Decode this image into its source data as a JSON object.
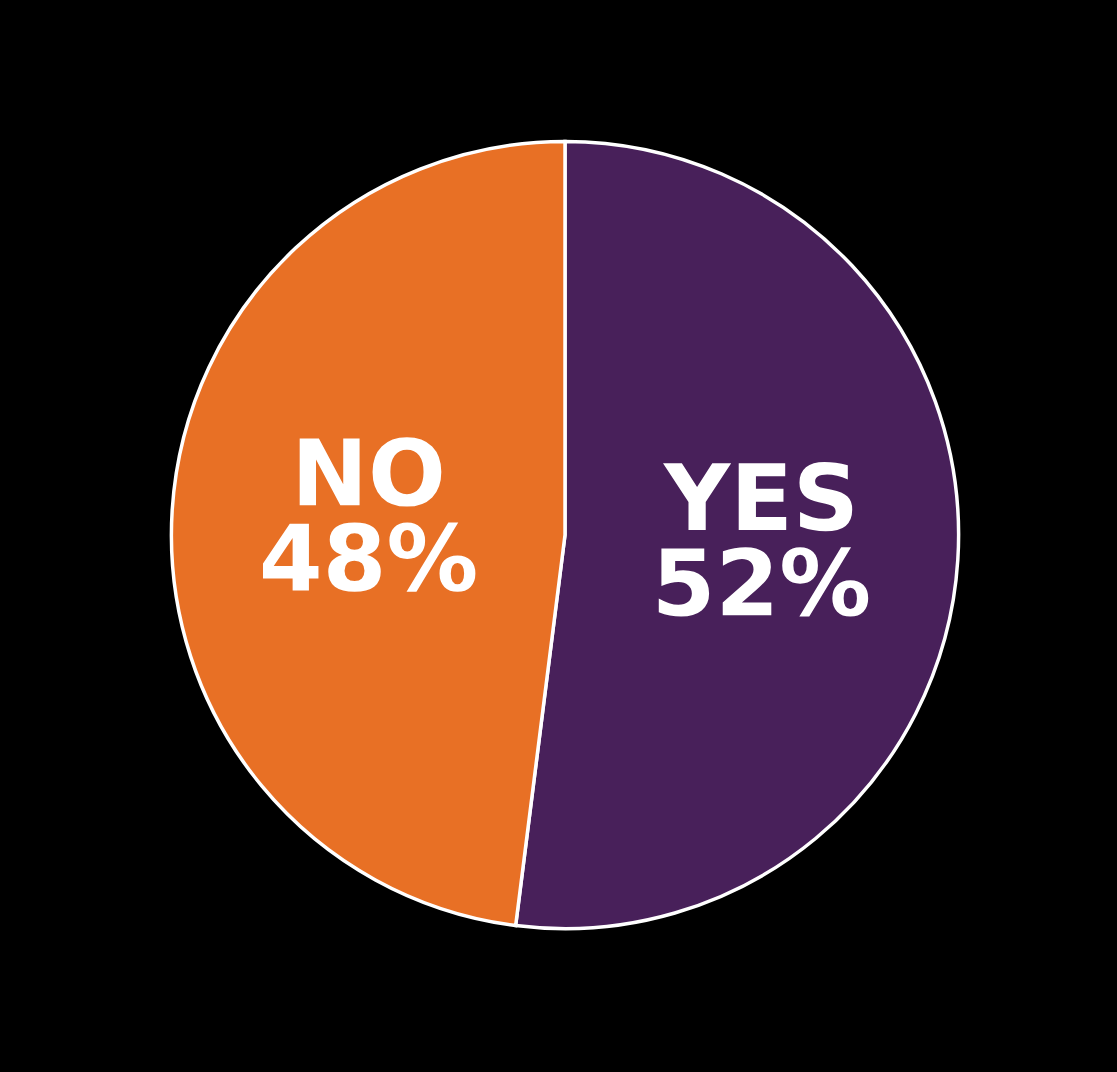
{
  "chart_data": {
    "type": "pie",
    "categories": [
      "YES",
      "NO"
    ],
    "values": [
      52,
      48
    ],
    "value_labels": [
      "52%",
      "48%"
    ],
    "colors": [
      "#48205a",
      "#e87025"
    ],
    "legend": false
  }
}
